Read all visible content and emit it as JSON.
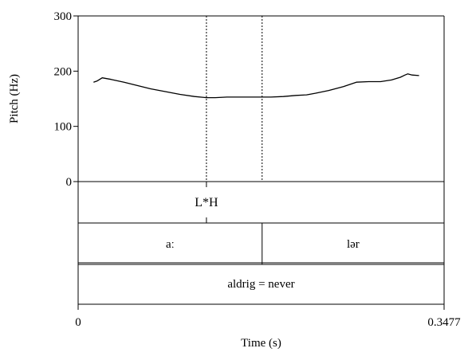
{
  "chart_data": {
    "type": "line",
    "series": [
      {
        "x": [
          0.0146,
          0.0179,
          0.0229,
          0.0313,
          0.0436,
          0.0562,
          0.0688,
          0.0828,
          0.0967,
          0.1106,
          0.1218,
          0.1302,
          0.1414,
          0.1554,
          0.1693,
          0.1832,
          0.195,
          0.207,
          0.217,
          0.2253,
          0.2381,
          0.252,
          0.2644,
          0.2761,
          0.2873,
          0.2978,
          0.3062,
          0.3106,
          0.3131,
          0.3173,
          0.3239
        ],
        "y": [
          180,
          182,
          188,
          185,
          180,
          174,
          168,
          163,
          158,
          154,
          152,
          152,
          153,
          153,
          153,
          153,
          154,
          156,
          157,
          160,
          165,
          172,
          180,
          181,
          181,
          184,
          189,
          193,
          195,
          193,
          192
        ]
      }
    ],
    "xlim": [
      0,
      0.3477
    ],
    "ylim": [
      0,
      300
    ],
    "yticks": [
      "0",
      "100",
      "200",
      "300"
    ],
    "xticks": [
      "0",
      "0.3477"
    ],
    "xlabel": "Time (s)",
    "ylabel": "Pitch (Hz)",
    "vlines": [
      0.1219,
      0.1748
    ],
    "grid": false,
    "tiers": [
      {
        "intervals": [],
        "points": [
          {
            "time": 0.1219,
            "label": "L*H"
          }
        ]
      },
      {
        "intervals": [
          {
            "start": 0,
            "end": 0.1748,
            "label": "aː"
          },
          {
            "start": 0.1748,
            "end": 0.3477,
            "label": "lər"
          }
        ],
        "points": []
      },
      {
        "intervals": [
          {
            "start": 0,
            "end": 0.3477,
            "label": "aldrig = never"
          }
        ],
        "points": []
      }
    ]
  }
}
